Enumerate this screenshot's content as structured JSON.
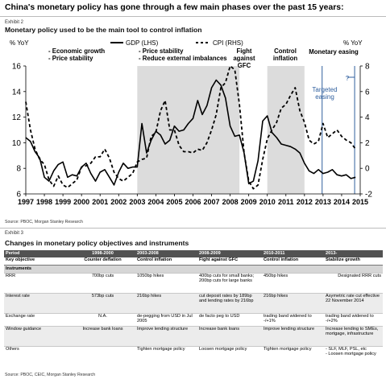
{
  "headline": "China's monetary policy has gone through a few main phases over the past 15 years:",
  "exhibit2": {
    "label": "Exhibit 2",
    "title": "Monetary policy used to be the main tool to control inflation",
    "source": "Source: PBOC, Morgan Stanley Research"
  },
  "exhibit3": {
    "label": "Exhibit 3",
    "title": "Changes in monetary policy objectives and instruments",
    "source": "Source: PBOC, CEIC, Morgan Stanley Research"
  },
  "chart_data": {
    "type": "line",
    "title": "Monetary policy used to be the main tool to control inflation",
    "ylabel_left": "% YoY",
    "ylabel_right": "% YoY",
    "ylim_left": [
      6,
      16
    ],
    "ylim_right": [
      -2,
      8
    ],
    "yticks_left": [
      "6",
      "8",
      "10",
      "12",
      "14",
      "16"
    ],
    "yticks_right": [
      "-2",
      "0",
      "2",
      "4",
      "6",
      "8"
    ],
    "xlim": [
      1997,
      2015
    ],
    "xticks": [
      "1997",
      "1998",
      "1999",
      "2000",
      "2001",
      "2002",
      "2003",
      "2004",
      "2005",
      "2006",
      "2007",
      "2008",
      "2009",
      "2010",
      "2011",
      "2012",
      "2013",
      "2014",
      "2015"
    ],
    "legend_position": "top-center",
    "series": [
      {
        "name": "GDP (LHS)",
        "axis": "left",
        "style": "solid",
        "color": "#000000",
        "x": [
          1997.0,
          1997.25,
          1997.5,
          1997.75,
          1998.0,
          1998.25,
          1998.5,
          1998.75,
          1999.0,
          1999.25,
          1999.5,
          1999.75,
          2000.0,
          2000.25,
          2000.5,
          2000.75,
          2001.0,
          2001.25,
          2001.5,
          2001.75,
          2002.0,
          2002.25,
          2002.5,
          2002.75,
          2003.0,
          2003.25,
          2003.5,
          2003.75,
          2004.0,
          2004.25,
          2004.5,
          2004.75,
          2005.0,
          2005.25,
          2005.5,
          2005.75,
          2006.0,
          2006.25,
          2006.5,
          2006.75,
          2007.0,
          2007.25,
          2007.5,
          2007.75,
          2008.0,
          2008.25,
          2008.5,
          2008.75,
          2009.0,
          2009.25,
          2009.5,
          2009.75,
          2010.0,
          2010.25,
          2010.5,
          2010.75,
          2011.0,
          2011.25,
          2011.5,
          2011.75,
          2012.0,
          2012.25,
          2012.5,
          2012.75,
          2013.0,
          2013.25,
          2013.5,
          2013.75,
          2014.0,
          2014.25,
          2014.5,
          2014.75
        ],
        "values": [
          10.4,
          10.1,
          9.3,
          8.8,
          7.3,
          7.0,
          7.8,
          8.3,
          8.5,
          7.3,
          7.5,
          7.4,
          8.1,
          8.4,
          7.6,
          7.0,
          7.7,
          7.9,
          7.3,
          6.7,
          7.7,
          8.4,
          8.0,
          8.1,
          8.1,
          11.5,
          9.2,
          10.2,
          10.9,
          10.6,
          9.9,
          10.2,
          11.3,
          10.9,
          11.0,
          11.5,
          11.9,
          13.3,
          12.2,
          12.9,
          14.3,
          14.9,
          14.5,
          13.5,
          11.3,
          10.5,
          10.6,
          9.2,
          6.8,
          7.0,
          8.6,
          11.7,
          12.1,
          10.8,
          10.4,
          9.9,
          9.8,
          9.7,
          9.5,
          9.2,
          8.4,
          7.8,
          7.6,
          7.9,
          7.6,
          7.7,
          7.9,
          7.5,
          7.4,
          7.5,
          7.2,
          7.3
        ]
      },
      {
        "name": "CPI (RHS)",
        "axis": "right",
        "style": "dashed",
        "color": "#000000",
        "x": [
          1997.0,
          1997.25,
          1997.5,
          1997.75,
          1998.0,
          1998.25,
          1998.5,
          1998.75,
          1999.0,
          1999.25,
          1999.5,
          1999.75,
          2000.0,
          2000.25,
          2000.5,
          2000.75,
          2001.0,
          2001.25,
          2001.5,
          2001.75,
          2002.0,
          2002.25,
          2002.5,
          2002.75,
          2003.0,
          2003.25,
          2003.5,
          2003.75,
          2004.0,
          2004.25,
          2004.5,
          2004.75,
          2005.0,
          2005.25,
          2005.5,
          2005.75,
          2006.0,
          2006.25,
          2006.5,
          2006.75,
          2007.0,
          2007.25,
          2007.5,
          2007.75,
          2008.0,
          2008.25,
          2008.5,
          2008.75,
          2009.0,
          2009.25,
          2009.5,
          2009.75,
          2010.0,
          2010.25,
          2010.5,
          2010.75,
          2011.0,
          2011.25,
          2011.5,
          2011.75,
          2012.0,
          2012.25,
          2012.5,
          2012.75,
          2013.0,
          2013.25,
          2013.5,
          2013.75,
          2014.0,
          2014.25,
          2014.5,
          2014.75
        ],
        "values": [
          5.2,
          3.0,
          1.5,
          0.7,
          0.3,
          -0.9,
          -1.4,
          -0.6,
          -1.3,
          -1.5,
          -1.2,
          -0.9,
          0.1,
          0.2,
          0.4,
          0.9,
          0.9,
          1.5,
          0.8,
          -0.3,
          -0.8,
          -1.0,
          -0.7,
          -0.4,
          0.5,
          0.7,
          0.8,
          2.5,
          2.8,
          4.5,
          5.3,
          3.0,
          3.0,
          1.8,
          1.3,
          1.3,
          1.2,
          1.5,
          1.4,
          2.0,
          3.0,
          4.2,
          6.3,
          6.7,
          8.0,
          7.7,
          5.0,
          1.2,
          -1.0,
          -1.6,
          -1.3,
          0.7,
          2.3,
          3.0,
          3.6,
          4.7,
          5.0,
          5.7,
          6.3,
          4.5,
          3.6,
          2.2,
          1.9,
          2.1,
          3.5,
          2.4,
          2.7,
          3.0,
          2.5,
          2.2,
          2.0,
          1.5
        ]
      }
    ],
    "shaded_regions": [
      {
        "start": 2003.0,
        "end": 2008.5
      },
      {
        "start": 2010.0,
        "end": 2012.0
      }
    ],
    "annotations": [
      {
        "lines": [
          "- Economic growth",
          "- Price stability"
        ]
      },
      {
        "lines": [
          "- Price stability",
          "- Reduce external imbalances"
        ]
      },
      {
        "lines": [
          "Fight",
          "against",
          "GFC"
        ]
      },
      {
        "lines": [
          "Control",
          "inflation"
        ]
      },
      {
        "lines": [
          "Monetary easing"
        ]
      },
      {
        "lines": [
          "Targeted",
          "easing"
        ]
      },
      {
        "lines": [
          "?"
        ]
      }
    ]
  },
  "table": {
    "headers": [
      "Period",
      "1998-2000",
      "2003-2008",
      "2008-2009",
      "2010-2011",
      "2013-"
    ],
    "key_objective": [
      "Key objective",
      "Counter deflation",
      "Control inflation",
      "Fight against GFC",
      "Control inflation",
      "Stabilize growth"
    ],
    "section": "Instruments",
    "rows": [
      [
        "RRR",
        "700bp cuts",
        "1050bp hikes",
        "400bp cuts for small banks; 200bp cuts for large banks",
        "450bp hikes",
        "Designated RRR cuts"
      ],
      [
        "Interest rate",
        "573bp cuts",
        "216bp hikes",
        "cut deposit rates by 189bp and lending rates by 216bp",
        "216bp hikes",
        "Asymetric rate cut effective 22 November 2014"
      ],
      [
        "Exchange rate",
        "N.A.",
        "de-pegging from USD in Jul 2005",
        "de facto peg to USD",
        "trading band widened to -/+1%",
        "trading band widened to -/+2%"
      ],
      [
        "Window guidance",
        "Increase bank loans",
        "Improve lending structure",
        "Increase bank loans",
        "Improve lending structure",
        "Increase lending to SMEs, mortgage, infrastructure"
      ],
      [
        "Others",
        "",
        "Tighten mortgage policy",
        "Loosen mortgage policy",
        "Tighten mortgage policy",
        "- SLF, MLF, PSL, etc\n- Loosen mortgage policy"
      ]
    ]
  }
}
